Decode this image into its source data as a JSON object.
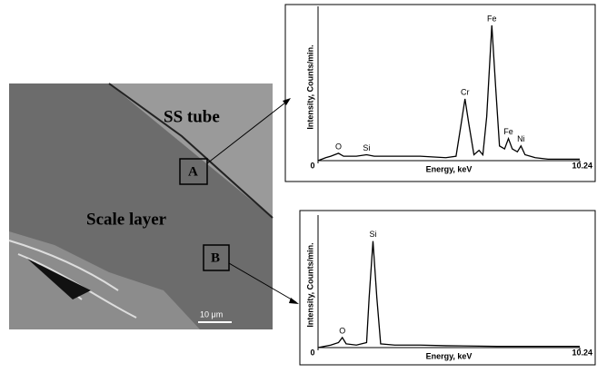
{
  "image": {
    "labels": {
      "tube": "SS tube",
      "scale": "Scale layer",
      "a": "A",
      "b": "B",
      "scalebar": "10 μm"
    }
  },
  "chart_data": [
    {
      "type": "line",
      "x_label": "Energy, keV",
      "y_label": "Intensity, Counts/min.",
      "xlim": [
        0,
        10.24
      ],
      "xticks": [
        0,
        10.24
      ],
      "ylim": [
        0,
        100
      ],
      "color": "#000000",
      "x": [
        0,
        0.3,
        0.5,
        0.8,
        1.0,
        1.5,
        1.9,
        2.2,
        3,
        4,
        5,
        5.4,
        5.6,
        5.75,
        5.9,
        6.1,
        6.3,
        6.45,
        6.6,
        6.8,
        6.95,
        7.1,
        7.3,
        7.45,
        7.6,
        7.8,
        7.94,
        8.1,
        8.5,
        9,
        10.24
      ],
      "values": [
        0,
        2,
        3,
        5,
        3,
        3,
        4,
        3,
        3,
        3,
        2,
        3,
        25,
        42,
        25,
        4,
        7,
        4,
        30,
        92,
        50,
        10,
        8,
        15,
        8,
        6,
        10,
        4,
        2,
        1,
        1
      ],
      "annotations": [
        {
          "text": "O",
          "x": 0.8,
          "y": 5
        },
        {
          "text": "Si",
          "x": 1.9,
          "y": 4
        },
        {
          "text": "Cr",
          "x": 5.75,
          "y": 42
        },
        {
          "text": "Fe",
          "x": 6.8,
          "y": 92
        },
        {
          "text": "Fe",
          "x": 7.45,
          "y": 15
        },
        {
          "text": "Ni",
          "x": 7.94,
          "y": 10
        }
      ]
    },
    {
      "type": "line",
      "x_label": "Energy, keV",
      "y_label": "Intensity, Counts/min.",
      "xlim": [
        0,
        10.24
      ],
      "xticks": [
        0,
        10.24
      ],
      "ylim": [
        0,
        100
      ],
      "color": "#000000",
      "x": [
        0,
        0.5,
        0.8,
        0.95,
        1.1,
        1.5,
        1.9,
        2.0,
        2.15,
        2.3,
        2.45,
        3,
        4,
        5,
        7,
        10.24
      ],
      "values": [
        0,
        2,
        4,
        8,
        3,
        2,
        4,
        40,
        85,
        40,
        3,
        2,
        2,
        1.5,
        1,
        1
      ],
      "annotations": [
        {
          "text": "O",
          "x": 0.95,
          "y": 8
        },
        {
          "text": "Si",
          "x": 2.15,
          "y": 85
        }
      ]
    }
  ]
}
